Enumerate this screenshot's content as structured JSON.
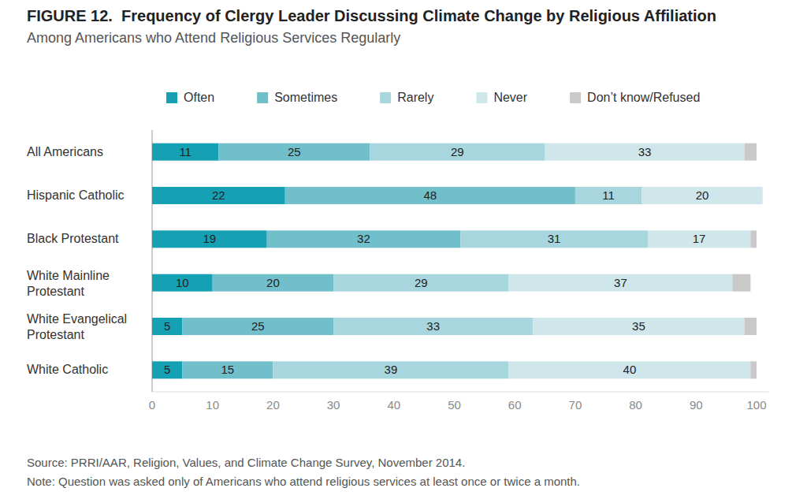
{
  "chart_data": {
    "type": "bar",
    "orientation": "horizontal",
    "stacked": true,
    "data_labels": true,
    "grid": false,
    "legend": "top",
    "title": "FIGURE 12.  Frequency of Clergy Leader Discussing Climate Change by Religious Affiliation",
    "subtitle": "Among Americans who Attend Religious Services Regularly",
    "categories": [
      "All Americans",
      "Hispanic Catholic",
      "Black Protestant",
      "White Mainline Protestant",
      "White Evangelical Protestant",
      "White Catholic"
    ],
    "series": [
      {
        "name": "Often",
        "color": "#16a0b3",
        "values": [
          11,
          22,
          19,
          10,
          5,
          5
        ]
      },
      {
        "name": "Sometimes",
        "color": "#72bfcc",
        "values": [
          25,
          48,
          32,
          20,
          25,
          15
        ]
      },
      {
        "name": "Rarely",
        "color": "#a7d6de",
        "values": [
          29,
          11,
          31,
          29,
          33,
          39
        ]
      },
      {
        "name": "Never",
        "color": "#cfe7eb",
        "values": [
          33,
          20,
          17,
          37,
          35,
          40
        ]
      },
      {
        "name": "Don’t know/Refused",
        "color": "#c9c9c9",
        "values": [
          2,
          0,
          1,
          3,
          2,
          1
        ],
        "data_labels": false
      }
    ],
    "xlim": [
      0,
      102
    ],
    "xticks": [
      0,
      10,
      20,
      30,
      40,
      50,
      60,
      70,
      80,
      90,
      100
    ],
    "annotations": [
      "Source: PRRI/AAR, Religion, Values, and Climate Change Survey, November 2014.",
      "Note: Question was asked only of Americans who attend religious services at least once or twice a month."
    ]
  }
}
